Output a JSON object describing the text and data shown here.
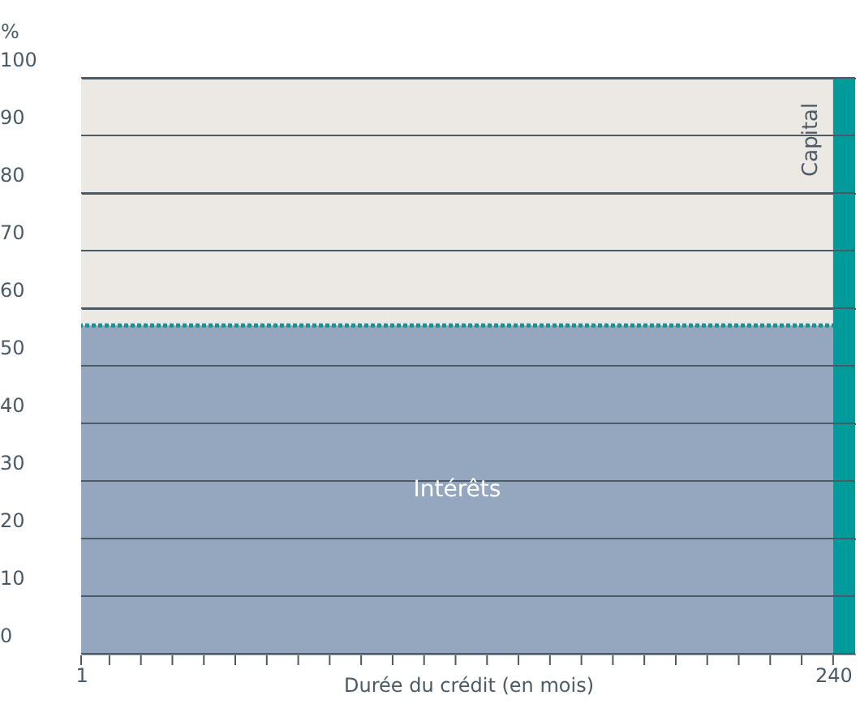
{
  "chart_data": {
    "type": "area",
    "xlabel": "Durée du crédit (en mois)",
    "ylabel": "%",
    "series": [
      {
        "name": "Intérêts",
        "color": "#94a7bf",
        "x": [
          1,
          240
        ],
        "values": [
          57,
          57
        ]
      },
      {
        "name": "Capital",
        "color": "#009b9a",
        "x": [
          240,
          247
        ],
        "values": [
          100,
          100
        ]
      }
    ],
    "ref_lines": [
      {
        "axis": "y",
        "value": 57,
        "color": "#009b9a",
        "line_style": "dotted"
      }
    ],
    "xlim": [
      1,
      247
    ],
    "xticks": [
      1,
      {
        "value": 10,
        "label": null
      },
      {
        "value": 20,
        "label": null
      },
      {
        "value": 30,
        "label": null
      },
      {
        "value": 40,
        "label": null
      },
      {
        "value": 50,
        "label": null
      },
      {
        "value": 60,
        "label": null
      },
      {
        "value": 70,
        "label": null
      },
      {
        "value": 80,
        "label": null
      },
      {
        "value": 90,
        "label": null
      },
      {
        "value": 100,
        "label": null
      },
      {
        "value": 110,
        "label": null
      },
      {
        "value": 120,
        "label": null
      },
      {
        "value": 130,
        "label": null
      },
      {
        "value": 140,
        "label": null
      },
      {
        "value": 150,
        "label": null
      },
      {
        "value": 160,
        "label": null
      },
      {
        "value": 170,
        "label": null
      },
      {
        "value": 180,
        "label": null
      },
      {
        "value": 190,
        "label": null
      },
      {
        "value": 200,
        "label": null
      },
      {
        "value": 210,
        "label": null
      },
      {
        "value": 220,
        "label": null
      },
      {
        "value": 230,
        "label": null
      },
      240
    ],
    "ylim": [
      0,
      100
    ],
    "yticks": [
      0,
      10,
      20,
      30,
      40,
      50,
      60,
      70,
      80,
      90,
      100
    ],
    "grid": "y"
  }
}
